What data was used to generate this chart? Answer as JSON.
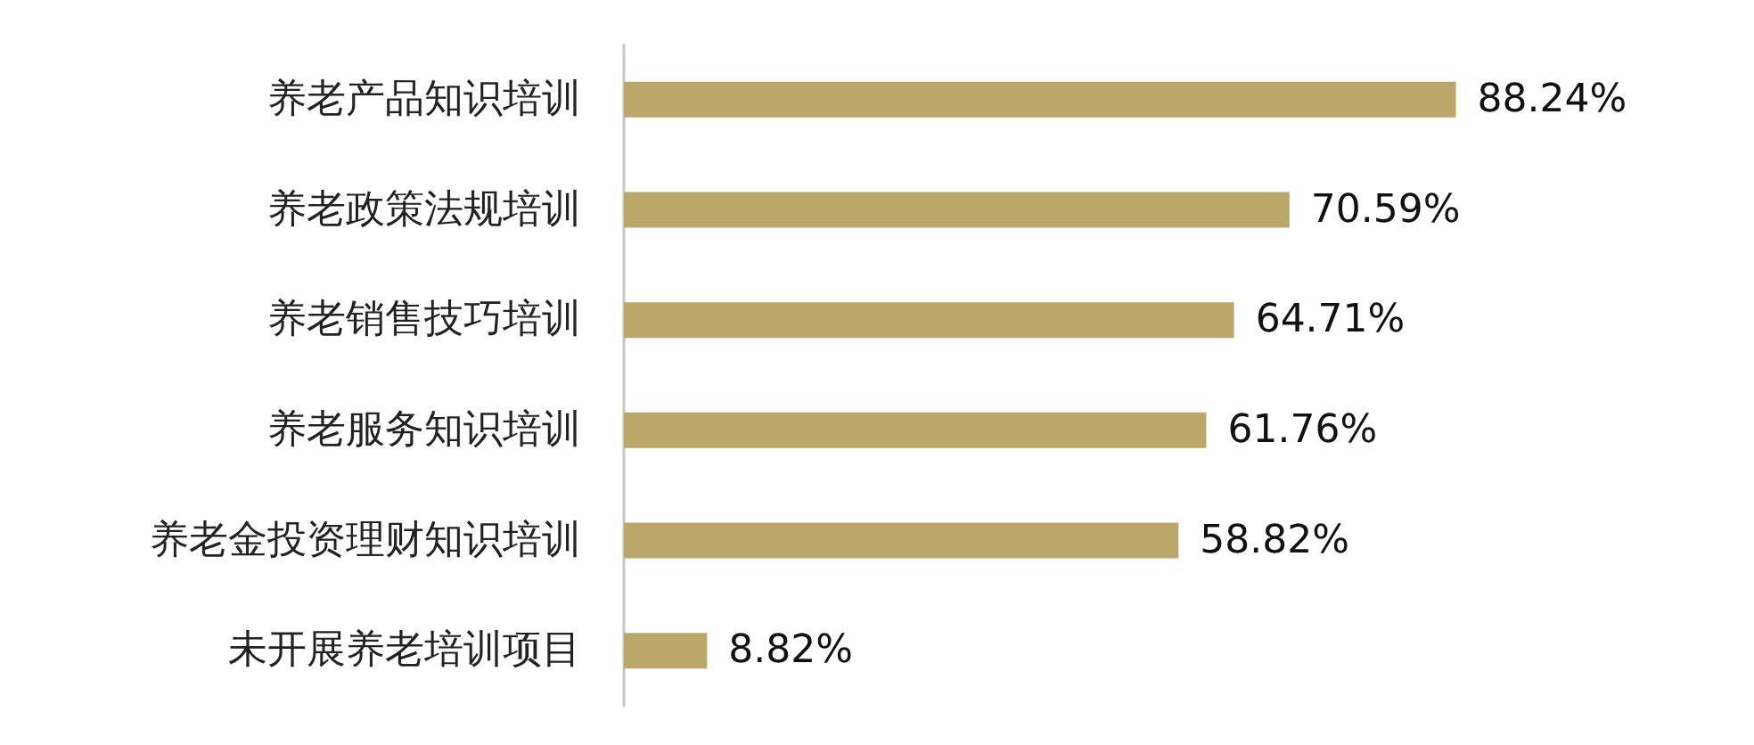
{
  "chart_data": {
    "type": "bar",
    "orientation": "horizontal",
    "categories": [
      "养老产品知识培训",
      "养老政策法规培训",
      "养老销售技巧培训",
      "养老服务知识培训",
      "养老金投资理财知识培训",
      "未开展养老培训项目"
    ],
    "values": [
      88.24,
      70.59,
      64.71,
      61.76,
      58.82,
      8.82
    ],
    "value_labels": [
      "88.24%",
      "70.59%",
      "64.71%",
      "61.76%",
      "58.82%",
      "8.82%"
    ],
    "color": "#bba76a",
    "tick_labels": "y"
  }
}
